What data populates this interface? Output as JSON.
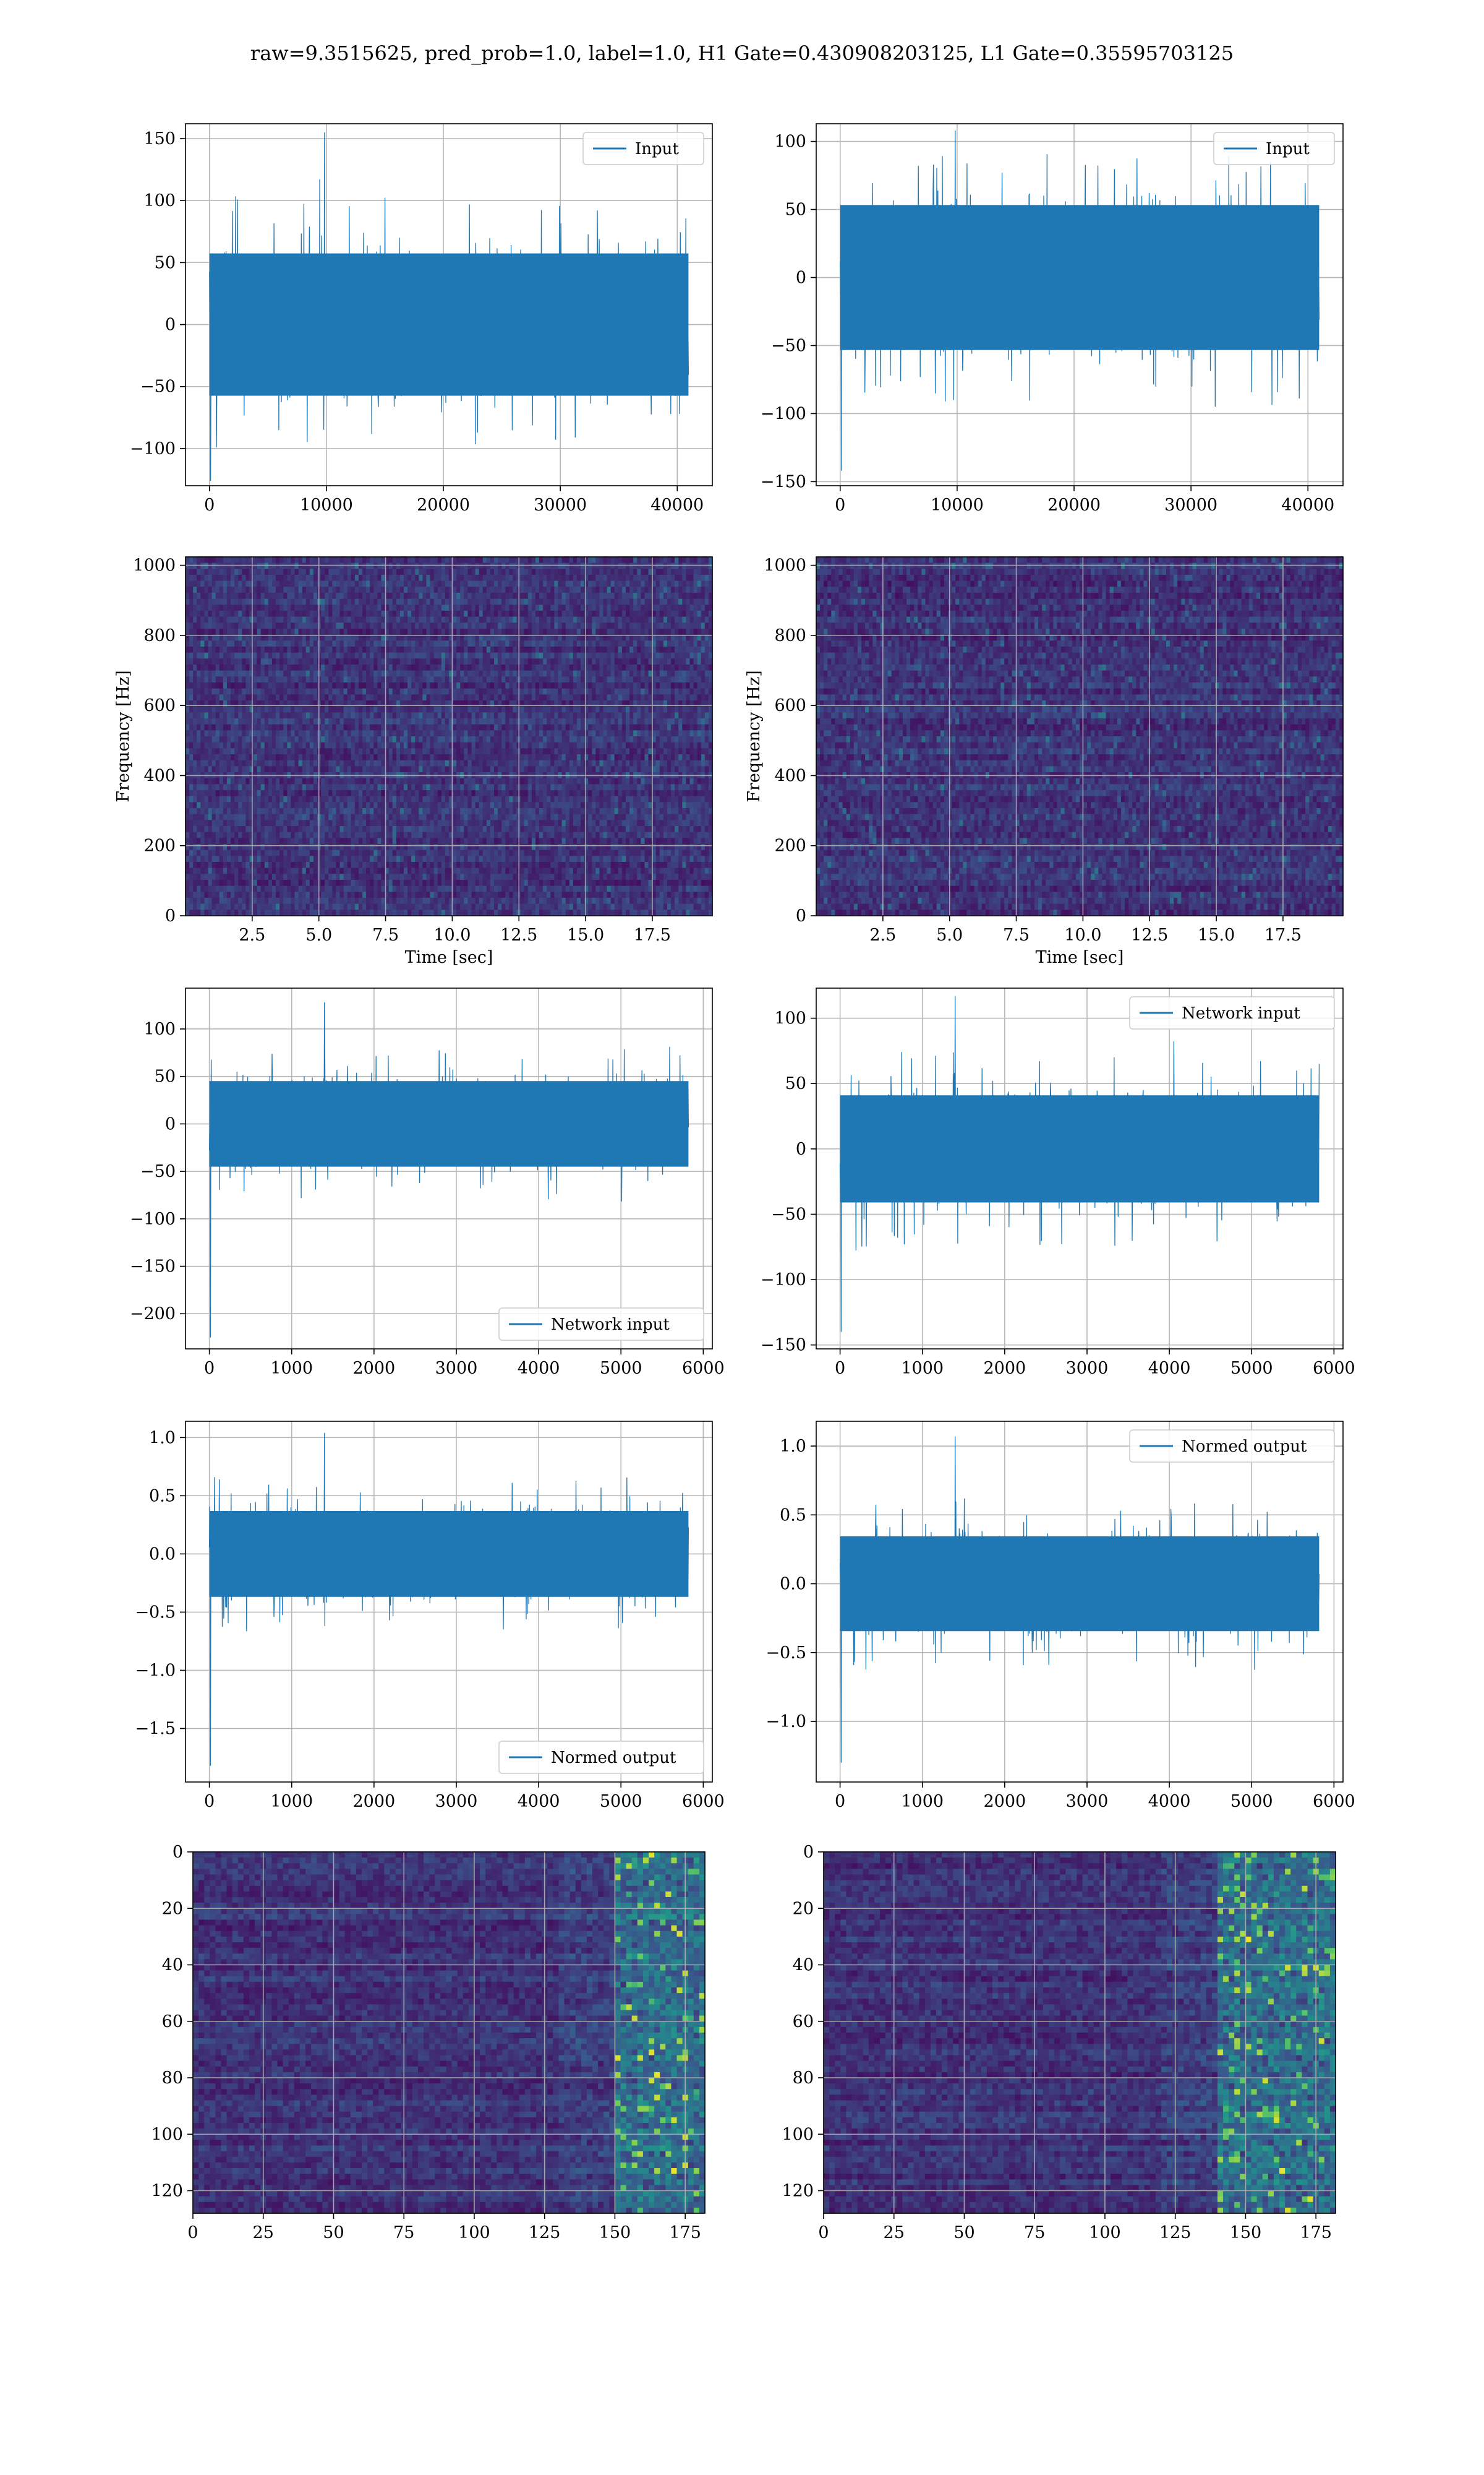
{
  "figure": {
    "suptitle": "raw=9.3515625, pred_prob=1.0, label=1.0, H1 Gate=0.430908203125, L1 Gate=0.35595703125"
  },
  "colors": {
    "series": "#1f77b4",
    "grid": "#b0b0b0",
    "viridis_low": "#440154",
    "viridis_high": "#fde725"
  },
  "chart_data": [
    {
      "id": "input-h1",
      "type": "line",
      "title": "",
      "xlabel": "",
      "ylabel": "",
      "xlim": [
        -2050,
        43000
      ],
      "ylim": [
        -130,
        162
      ],
      "xticks": [
        0,
        10000,
        20000,
        30000,
        40000
      ],
      "yticks": [
        -100,
        -50,
        0,
        50,
        100,
        150
      ],
      "legend": "top-right",
      "series": [
        {
          "name": "Input",
          "x_range": [
            0,
            40960
          ],
          "envelope_min": -126,
          "envelope_max": 155,
          "typical_amplitude": 70
        }
      ],
      "grid": true
    },
    {
      "id": "input-l1",
      "type": "line",
      "title": "",
      "xlabel": "",
      "ylabel": "",
      "xlim": [
        -2050,
        43000
      ],
      "ylim": [
        -153,
        113
      ],
      "xticks": [
        0,
        10000,
        20000,
        30000,
        40000
      ],
      "yticks": [
        -150,
        -100,
        -50,
        0,
        50,
        100
      ],
      "legend": "top-right",
      "series": [
        {
          "name": "Input",
          "x_range": [
            0,
            40960
          ],
          "envelope_min": -142,
          "envelope_max": 108,
          "typical_amplitude": 65
        }
      ],
      "grid": true
    },
    {
      "id": "spectrogram-h1",
      "type": "heatmap",
      "title": "",
      "xlabel": "Time [sec]",
      "ylabel": "Frequency [Hz]",
      "xlim": [
        0,
        19.75
      ],
      "ylim": [
        0,
        1024
      ],
      "xticks": [
        2.5,
        5.0,
        7.5,
        10.0,
        12.5,
        15.0,
        17.5
      ],
      "yticks": [
        0,
        200,
        400,
        600,
        800,
        1000
      ],
      "colormap": "viridis",
      "grid": true
    },
    {
      "id": "spectrogram-l1",
      "type": "heatmap",
      "title": "",
      "xlabel": "Time [sec]",
      "ylabel": "Frequency [Hz]",
      "xlim": [
        0,
        19.75
      ],
      "ylim": [
        0,
        1024
      ],
      "xticks": [
        2.5,
        5.0,
        7.5,
        10.0,
        12.5,
        15.0,
        17.5
      ],
      "yticks": [
        0,
        200,
        400,
        600,
        800,
        1000
      ],
      "colormap": "viridis",
      "grid": true
    },
    {
      "id": "network-input-h1",
      "type": "line",
      "title": "",
      "xlabel": "",
      "ylabel": "",
      "xlim": [
        -290,
        6110
      ],
      "ylim": [
        -237,
        143
      ],
      "xticks": [
        0,
        1000,
        2000,
        3000,
        4000,
        5000,
        6000
      ],
      "yticks": [
        -200,
        -150,
        -100,
        -50,
        0,
        50,
        100
      ],
      "legend": "bottom-right",
      "series": [
        {
          "name": "Network input",
          "x_range": [
            0,
            5820
          ],
          "envelope_min": -225,
          "envelope_max": 128,
          "typical_amplitude": 55
        }
      ],
      "grid": true
    },
    {
      "id": "network-input-l1",
      "type": "line",
      "title": "",
      "xlabel": "",
      "ylabel": "",
      "xlim": [
        -290,
        6110
      ],
      "ylim": [
        -153,
        123
      ],
      "xticks": [
        0,
        1000,
        2000,
        3000,
        4000,
        5000,
        6000
      ],
      "yticks": [
        -150,
        -100,
        -50,
        0,
        50,
        100
      ],
      "legend": "top-right",
      "series": [
        {
          "name": "Network input",
          "x_range": [
            0,
            5820
          ],
          "envelope_min": -140,
          "envelope_max": 117,
          "typical_amplitude": 50
        }
      ],
      "grid": true
    },
    {
      "id": "normed-output-h1",
      "type": "line",
      "title": "",
      "xlabel": "",
      "ylabel": "",
      "xlim": [
        -290,
        6110
      ],
      "ylim": [
        -1.96,
        1.14
      ],
      "xticks": [
        0,
        1000,
        2000,
        3000,
        4000,
        5000,
        6000
      ],
      "yticks": [
        -1.5,
        -1.0,
        -0.5,
        0.0,
        0.5,
        1.0
      ],
      "legend": "bottom-right",
      "series": [
        {
          "name": "Normed output",
          "x_range": [
            0,
            5820
          ],
          "envelope_min": -1.82,
          "envelope_max": 1.04,
          "typical_amplitude": 0.45
        }
      ],
      "grid": true
    },
    {
      "id": "normed-output-l1",
      "type": "line",
      "title": "",
      "xlabel": "",
      "ylabel": "",
      "xlim": [
        -290,
        6110
      ],
      "ylim": [
        -1.44,
        1.18
      ],
      "xticks": [
        0,
        1000,
        2000,
        3000,
        4000,
        5000,
        6000
      ],
      "yticks": [
        -1.0,
        -0.5,
        0.0,
        0.5,
        1.0
      ],
      "legend": "top-right",
      "series": [
        {
          "name": "Normed output",
          "x_range": [
            0,
            5820
          ],
          "envelope_min": -1.3,
          "envelope_max": 1.07,
          "typical_amplitude": 0.42
        }
      ],
      "grid": true
    },
    {
      "id": "feature-map-h1",
      "type": "heatmap",
      "title": "",
      "xlabel": "",
      "ylabel": "",
      "xlim": [
        0,
        182
      ],
      "ylim": [
        128,
        0
      ],
      "xticks": [
        0,
        25,
        50,
        75,
        100,
        125,
        150,
        175
      ],
      "yticks": [
        0,
        20,
        40,
        60,
        80,
        100,
        120
      ],
      "colormap": "viridis",
      "bright_band_columns": [
        150,
        182
      ],
      "grid": true
    },
    {
      "id": "feature-map-l1",
      "type": "heatmap",
      "title": "",
      "xlabel": "",
      "ylabel": "",
      "xlim": [
        0,
        182
      ],
      "ylim": [
        128,
        0
      ],
      "xticks": [
        0,
        25,
        50,
        75,
        100,
        125,
        150,
        175
      ],
      "yticks": [
        0,
        20,
        40,
        60,
        80,
        100,
        120
      ],
      "colormap": "viridis",
      "bright_band_columns": [
        140,
        182
      ],
      "grid": true
    }
  ]
}
